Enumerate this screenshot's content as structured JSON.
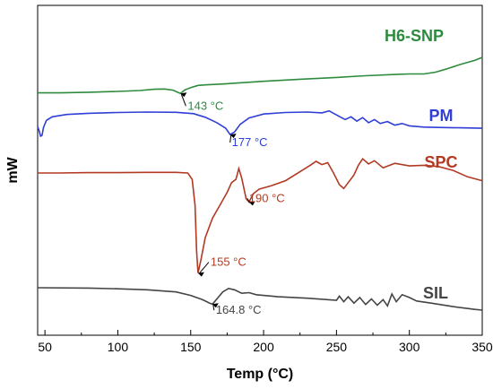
{
  "chart_data": {
    "type": "line",
    "xlabel": "Temp (°C)",
    "ylabel": "mW",
    "xlim": [
      45,
      350
    ],
    "x_ticks": [
      50,
      100,
      150,
      200,
      250,
      300,
      350
    ],
    "y_ticks_shown": false,
    "grid": false,
    "series": [
      {
        "name": "H6-SNP",
        "color": "#2e8b3e",
        "points": [
          [
            45,
            -1.0
          ],
          [
            60,
            -1.0
          ],
          [
            80,
            -0.9
          ],
          [
            100,
            -0.75
          ],
          [
            115,
            -0.6
          ],
          [
            125,
            -0.4
          ],
          [
            132,
            -0.35
          ],
          [
            138,
            -0.55
          ],
          [
            141,
            -0.9
          ],
          [
            143,
            -1.1
          ],
          [
            146,
            -0.5
          ],
          [
            150,
            -0.1
          ],
          [
            155,
            0.25
          ],
          [
            160,
            0.35
          ],
          [
            175,
            0.55
          ],
          [
            200,
            0.95
          ],
          [
            225,
            1.3
          ],
          [
            250,
            1.6
          ],
          [
            270,
            1.9
          ],
          [
            290,
            2.1
          ],
          [
            300,
            2.2
          ],
          [
            310,
            2.2
          ],
          [
            318,
            2.5
          ],
          [
            325,
            3.0
          ],
          [
            335,
            3.8
          ],
          [
            345,
            4.5
          ],
          [
            350,
            5.0
          ]
        ],
        "annotation": {
          "label": "143 °C",
          "x": 143
        }
      },
      {
        "name": "PM",
        "color": "#2f3fd6",
        "points": [
          [
            45,
            -2.8
          ],
          [
            46,
            -3.8
          ],
          [
            47,
            -5.2
          ],
          [
            48,
            -5.0
          ],
          [
            49,
            -3.0
          ],
          [
            51,
            -1.2
          ],
          [
            55,
            -0.3
          ],
          [
            65,
            0.3
          ],
          [
            80,
            0.6
          ],
          [
            100,
            0.8
          ],
          [
            120,
            0.9
          ],
          [
            140,
            0.85
          ],
          [
            152,
            0.5
          ],
          [
            160,
            -0.4
          ],
          [
            168,
            -1.8
          ],
          [
            174,
            -3.2
          ],
          [
            177,
            -4.8
          ],
          [
            180,
            -4.2
          ],
          [
            184,
            -2.2
          ],
          [
            190,
            -0.6
          ],
          [
            200,
            0.4
          ],
          [
            215,
            0.8
          ],
          [
            230,
            0.9
          ],
          [
            240,
            0.7
          ],
          [
            245,
            1.2
          ],
          [
            248,
            0.6
          ],
          [
            252,
            -0.2
          ],
          [
            256,
            -1.0
          ],
          [
            260,
            -0.3
          ],
          [
            264,
            -1.4
          ],
          [
            268,
            -0.5
          ],
          [
            272,
            -1.8
          ],
          [
            276,
            -1.0
          ],
          [
            280,
            -2.0
          ],
          [
            285,
            -1.5
          ],
          [
            290,
            -2.4
          ],
          [
            295,
            -2.0
          ],
          [
            300,
            -2.6
          ],
          [
            310,
            -2.9
          ],
          [
            320,
            -3.0
          ],
          [
            335,
            -3.1
          ],
          [
            350,
            -3.2
          ]
        ],
        "annotation": {
          "label": "177 °C",
          "x": 177
        }
      },
      {
        "name": "SPC",
        "color": "#b23a22",
        "points": [
          [
            45,
            0.0
          ],
          [
            60,
            0.0
          ],
          [
            80,
            0.05
          ],
          [
            100,
            0.05
          ],
          [
            120,
            0.1
          ],
          [
            140,
            0.1
          ],
          [
            148,
            0.0
          ],
          [
            151,
            -1.0
          ],
          [
            153,
            -5.0
          ],
          [
            154,
            -12.0
          ],
          [
            155,
            -15.5
          ],
          [
            157,
            -13.5
          ],
          [
            160,
            -10.0
          ],
          [
            165,
            -7.0
          ],
          [
            170,
            -5.0
          ],
          [
            175,
            -3.0
          ],
          [
            178,
            -1.5
          ],
          [
            181,
            -1.0
          ],
          [
            183,
            0.7
          ],
          [
            185,
            -0.8
          ],
          [
            188,
            -4.0
          ],
          [
            190,
            -4.5
          ],
          [
            193,
            -3.2
          ],
          [
            197,
            -2.5
          ],
          [
            205,
            -2.0
          ],
          [
            215,
            -1.2
          ],
          [
            225,
            0.2
          ],
          [
            232,
            1.2
          ],
          [
            236,
            1.8
          ],
          [
            240,
            1.3
          ],
          [
            244,
            1.6
          ],
          [
            248,
            0.0
          ],
          [
            252,
            -1.8
          ],
          [
            255,
            -2.4
          ],
          [
            258,
            -1.5
          ],
          [
            262,
            -0.3
          ],
          [
            265,
            1.2
          ],
          [
            268,
            2.2
          ],
          [
            272,
            1.4
          ],
          [
            276,
            1.9
          ],
          [
            282,
            0.8
          ],
          [
            290,
            1.5
          ],
          [
            300,
            1.1
          ],
          [
            310,
            1.2
          ],
          [
            320,
            1.0
          ],
          [
            330,
            0.4
          ],
          [
            340,
            -0.6
          ],
          [
            350,
            -1.2
          ]
        ],
        "annotation": {
          "label": "190 °C",
          "x": 190
        },
        "annotation2": {
          "label": "155 °C",
          "x": 155
        }
      },
      {
        "name": "SIL",
        "color": "#454545",
        "points": [
          [
            45,
            0.0
          ],
          [
            80,
            -0.05
          ],
          [
            100,
            -0.15
          ],
          [
            120,
            -0.3
          ],
          [
            140,
            -0.6
          ],
          [
            150,
            -1.1
          ],
          [
            158,
            -1.7
          ],
          [
            163,
            -2.2
          ],
          [
            165,
            -2.35
          ],
          [
            168,
            -1.6
          ],
          [
            172,
            -0.6
          ],
          [
            176,
            -0.1
          ],
          [
            180,
            -0.3
          ],
          [
            185,
            -0.8
          ],
          [
            190,
            -0.7
          ],
          [
            195,
            -1.0
          ],
          [
            210,
            -1.3
          ],
          [
            230,
            -1.5
          ],
          [
            250,
            -1.8
          ],
          [
            252,
            -1.2
          ],
          [
            255,
            -2.0
          ],
          [
            258,
            -1.3
          ],
          [
            262,
            -2.2
          ],
          [
            266,
            -1.4
          ],
          [
            270,
            -2.4
          ],
          [
            274,
            -1.6
          ],
          [
            278,
            -2.5
          ],
          [
            282,
            -1.7
          ],
          [
            285,
            -2.6
          ],
          [
            288,
            -0.9
          ],
          [
            291,
            -2.0
          ],
          [
            295,
            -1.0
          ],
          [
            300,
            -1.4
          ],
          [
            305,
            -1.9
          ],
          [
            315,
            -2.2
          ],
          [
            330,
            -2.7
          ],
          [
            345,
            -3.1
          ],
          [
            350,
            -3.2
          ]
        ],
        "annotation": {
          "label": "164.8 °C",
          "x": 164.8
        }
      }
    ]
  }
}
